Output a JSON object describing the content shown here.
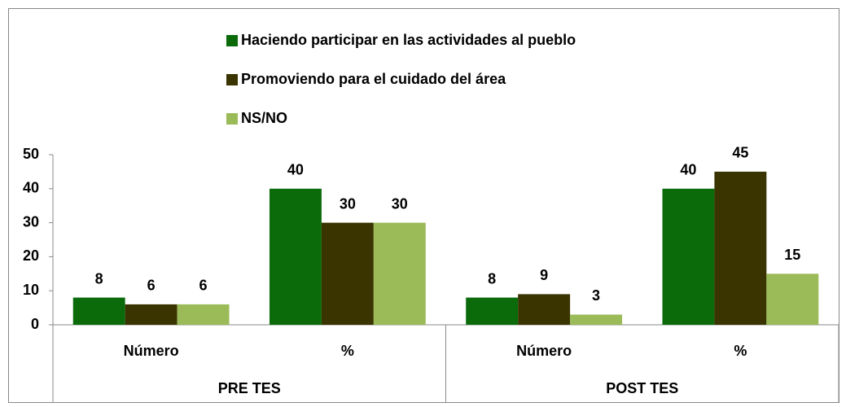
{
  "chart_data": {
    "type": "bar",
    "categories": [
      "Número",
      "%",
      "Número",
      "%"
    ],
    "groups": [
      "PRE TES",
      "POST TES"
    ],
    "series": [
      {
        "name": "Haciendo participar en las actividades al pueblo",
        "color": "#0b6b0b",
        "values": [
          8,
          40,
          8,
          40
        ]
      },
      {
        "name": "Promoviendo para el cuidado del área",
        "color": "#393400",
        "values": [
          6,
          30,
          9,
          45
        ]
      },
      {
        "name": "NS/NO",
        "color": "#9bbb59",
        "values": [
          6,
          30,
          3,
          15
        ]
      }
    ],
    "ylim": [
      0,
      50
    ],
    "yticks": [
      0,
      10,
      20,
      30,
      40,
      50
    ],
    "grid": false,
    "legend": "top"
  }
}
